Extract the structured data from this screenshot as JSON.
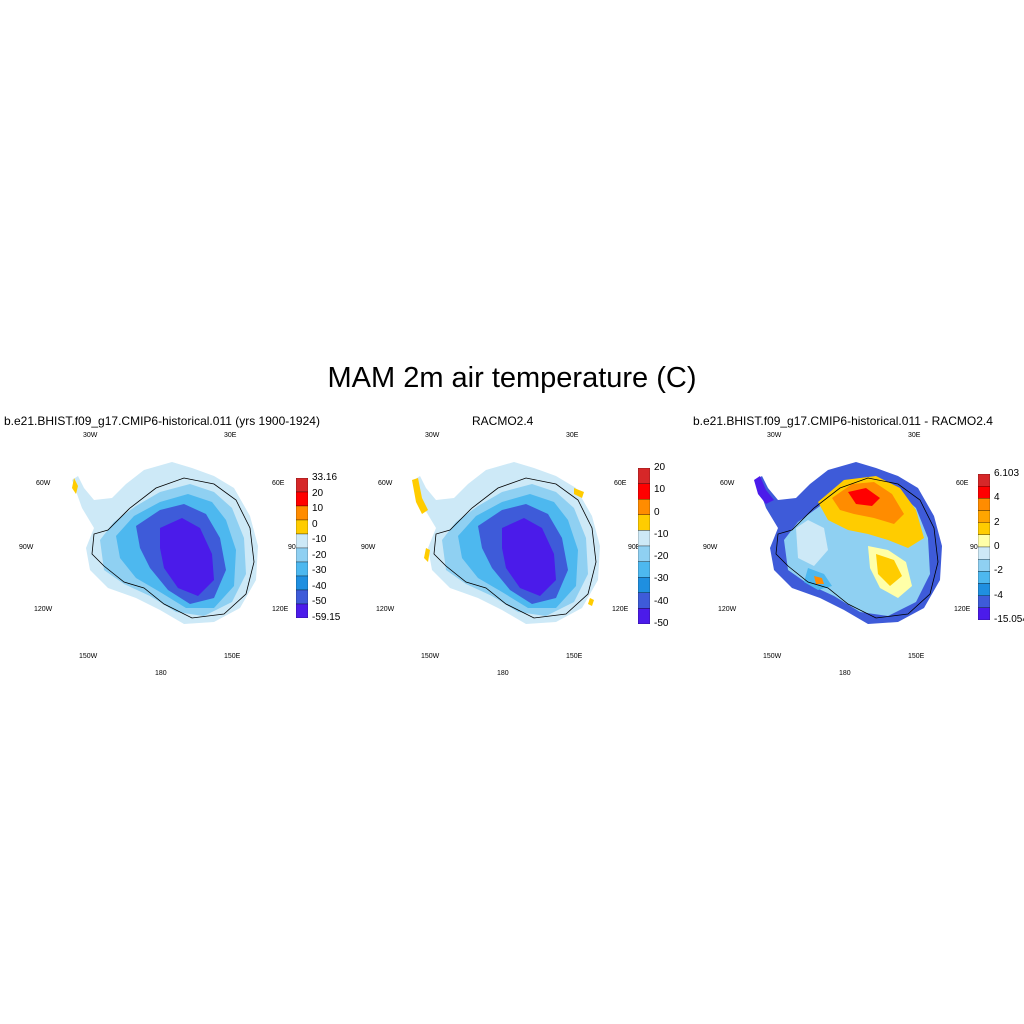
{
  "title": "MAM 2m air temperature (C)",
  "colors": {
    "red": "#d62728",
    "red2": "#ff0000",
    "orange": "#ff8c00",
    "gold": "#ffcc00",
    "pale_yellow": "#ffffa8",
    "light_blue": "#cde9f7",
    "sky": "#8fd0f2",
    "cyan": "#4db8ef",
    "blue": "#1f8fe0",
    "royal": "#3e5bd9",
    "indigo": "#4b1bea"
  },
  "panels": [
    {
      "title": "b.e21.BHIST.f09_g17.CMIP6-historical.011 (yrs 1900-1924)",
      "lon_labels": [
        "30W",
        "30E",
        "60W",
        "60E",
        "90W",
        "90E",
        "120W",
        "120E",
        "150W",
        "150E",
        "180"
      ],
      "colorbar": {
        "labels": [
          "33.16",
          "20",
          "10",
          "0",
          "-10",
          "-20",
          "-30",
          "-40",
          "-50",
          "-59.15"
        ],
        "levels": [
          "#d62728",
          "#ff0000",
          "#ff8c00",
          "#ffcc00",
          "#cde9f7",
          "#8fd0f2",
          "#4db8ef",
          "#1f8fe0",
          "#3e5bd9",
          "#4b1bea"
        ]
      }
    },
    {
      "title": "RACMO2.4",
      "lon_labels": [
        "30W",
        "30E",
        "60W",
        "60E",
        "90W",
        "90E",
        "120W",
        "120E",
        "150W",
        "150E",
        "180"
      ],
      "colorbar": {
        "labels": [
          "20",
          "10",
          "0",
          "-10",
          "-20",
          "-30",
          "-40",
          "-50"
        ],
        "levels": [
          "#d62728",
          "#ff0000",
          "#ff8c00",
          "#ffcc00",
          "#cde9f7",
          "#8fd0f2",
          "#4db8ef",
          "#1f8fe0",
          "#3e5bd9",
          "#4b1bea"
        ]
      }
    },
    {
      "title": "b.e21.BHIST.f09_g17.CMIP6-historical.011 - RACMO2.4",
      "lon_labels": [
        "30W",
        "30E",
        "60W",
        "60E",
        "90W",
        "90E",
        "120W",
        "120E",
        "150W",
        "150E",
        "180"
      ],
      "colorbar": {
        "labels": [
          "6.103",
          "4",
          "2",
          "0",
          "-2",
          "-4",
          "-15.054"
        ],
        "levels": [
          "#d62728",
          "#ff0000",
          "#ff8c00",
          "#ffa500",
          "#ffcc00",
          "#ffffa8",
          "#cde9f7",
          "#8fd0f2",
          "#4db8ef",
          "#1f8fe0",
          "#3e5bd9",
          "#4b1bea"
        ]
      }
    }
  ]
}
